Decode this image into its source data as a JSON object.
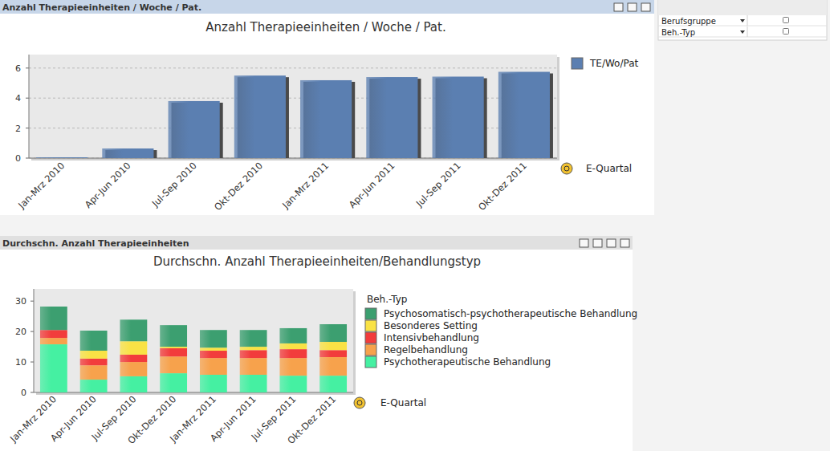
{
  "panels": [
    {
      "caption": "Anzahl Therapieeinheiten / Woche / Pat."
    },
    {
      "caption": "Durchschn. Anzahl Therapieeinheiten"
    }
  ],
  "filters": [
    "Berufsgruppe",
    "Beh.-Typ"
  ],
  "chart_data": [
    {
      "type": "bar",
      "title": "Anzahl Therapieeinheiten / Woche / Pat.",
      "x_label": "E-Quartal",
      "categories": [
        "Jan-Mrz 2010",
        "Apr-Jun 2010",
        "Jul-Sep 2010",
        "Okt-Dez 2010",
        "Jan-Mrz 2011",
        "Apr-Jun 2011",
        "Jul-Sep 2011",
        "Okt-Dez 2011"
      ],
      "series": [
        {
          "name": "TE/Wo/Pat",
          "color": "#5b7fb1",
          "values": [
            0.05,
            0.64,
            3.8,
            5.5,
            5.19,
            5.4,
            5.43,
            5.75
          ]
        }
      ],
      "ylim": [
        0,
        6.9
      ],
      "yticks": [
        0,
        2,
        4,
        6
      ],
      "grid": true,
      "legend": "right"
    },
    {
      "type": "bar",
      "title": "Durchschn. Anzahl Therapieeinheiten/Behandlungstyp",
      "x_label": "E-Quartal",
      "legend_title": "Beh.-Typ",
      "categories": [
        "Jan-Mrz 2010",
        "Apr-Jun 2010",
        "Jul-Sep 2010",
        "Okt-Dez 2010",
        "Jan-Mrz 2011",
        "Apr-Jun 2011",
        "Jul-Sep 2011",
        "Okt-Dez 2011"
      ],
      "series": [
        {
          "name": "Psychotherapeutische Behandlung",
          "color": "#45f0a2",
          "values": [
            15.8,
            4.2,
            5.3,
            6.3,
            5.8,
            5.8,
            5.5,
            5.5
          ]
        },
        {
          "name": "Regelbehandlung",
          "color": "#f7a24c",
          "values": [
            2.1,
            4.7,
            4.7,
            5.5,
            5.5,
            5.5,
            5.8,
            6.1
          ]
        },
        {
          "name": "Intensivbehandlung",
          "color": "#f23c3c",
          "values": [
            2.6,
            2.2,
            2.4,
            2.7,
            2.4,
            2.6,
            2.9,
            2.3
          ]
        },
        {
          "name": "Besonderes Setting",
          "color": "#f9e245",
          "values": [
            0,
            2.6,
            4.4,
            0.5,
            1.0,
            1.1,
            1.9,
            2.7
          ]
        },
        {
          "name": "Psychosomatisch-psychotherapeutische Behandlung",
          "color": "#3c9f70",
          "values": [
            7.7,
            6.6,
            7.1,
            7.1,
            5.8,
            5.5,
            5.0,
            5.8
          ]
        }
      ],
      "ylim": [
        0,
        34
      ],
      "yticks": [
        0,
        10,
        20,
        30
      ],
      "grid": false,
      "stacked": true,
      "legend": "right"
    }
  ]
}
